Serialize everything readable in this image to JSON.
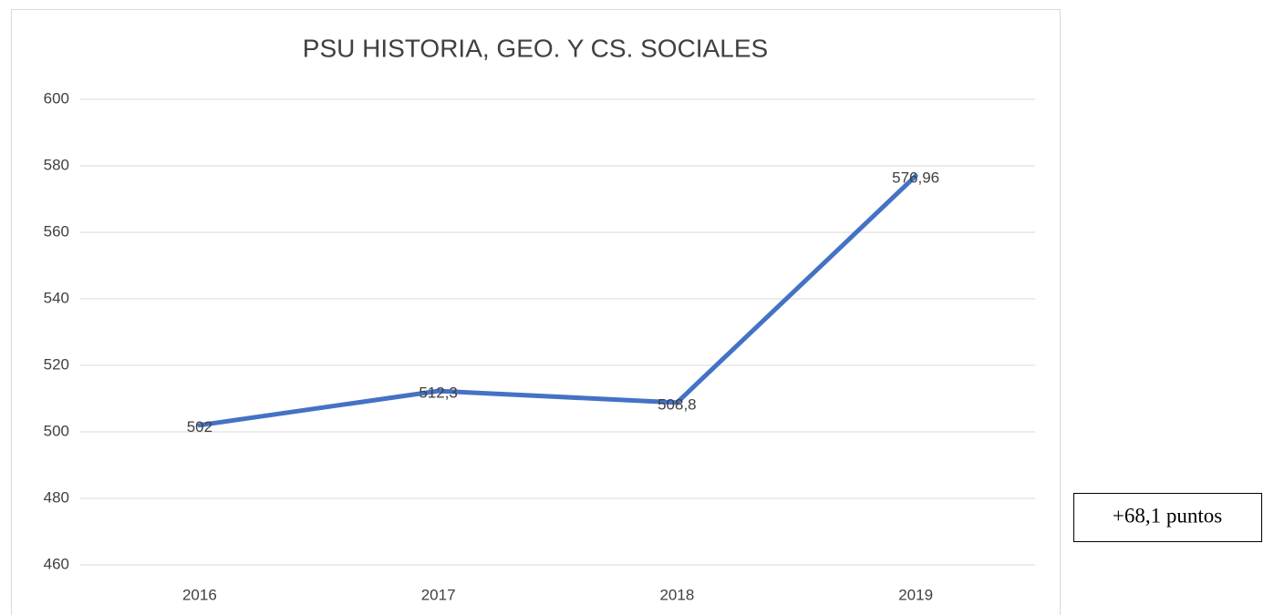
{
  "chart_data": {
    "type": "line",
    "title": "PSU HISTORIA, GEO. Y CS. SOCIALES",
    "categories": [
      "2016",
      "2017",
      "2018",
      "2019"
    ],
    "values": [
      502,
      512.3,
      508.8,
      576.96
    ],
    "value_labels": [
      "502",
      "512,3",
      "508,8",
      "576,96"
    ],
    "color": "#4472c4",
    "ylim": [
      460,
      600
    ],
    "yticks": [
      460,
      480,
      500,
      520,
      540,
      560,
      580,
      600
    ],
    "grid": true,
    "annotation": "+68,1 puntos"
  }
}
